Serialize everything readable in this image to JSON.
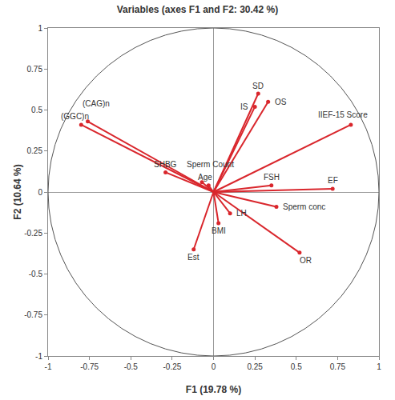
{
  "chart_data": {
    "type": "correlation_circle",
    "title": "Variables (axes F1 and F2: 30.42 %)",
    "x_label": "F1 (19.78 %)",
    "y_label": "F2 (10.64 %)",
    "labels": [
      "(CAG)n",
      "(GGC)n",
      "SHBG",
      "Sperm Count",
      "Age",
      "SD",
      "OS",
      "IS",
      "IIEF-15 Score",
      "FSH",
      "Sperm conc",
      "EF",
      "LH",
      "BMI",
      "Est",
      "OR"
    ],
    "x": [
      -0.76,
      -0.8,
      -0.29,
      -0.07,
      -0.03,
      0.27,
      0.33,
      0.25,
      0.83,
      0.35,
      0.38,
      0.72,
      0.1,
      0.03,
      -0.12,
      0.52
    ],
    "values": [
      0.43,
      0.41,
      0.12,
      0.06,
      0.04,
      0.6,
      0.55,
      0.52,
      0.41,
      0.04,
      -0.09,
      0.02,
      -0.13,
      -0.19,
      -0.35,
      -0.37
    ],
    "color": "#d9262c",
    "marker": "circle",
    "xlim": [
      -1,
      1
    ],
    "ylim": [
      -1,
      1
    ],
    "xticks": [
      -1,
      -0.75,
      -0.5,
      -0.25,
      0,
      0.25,
      0.5,
      0.75,
      1
    ],
    "yticks": [
      -1,
      -0.75,
      -0.5,
      -0.25,
      0,
      0.25,
      0.5,
      0.75,
      1
    ],
    "grid": false
  }
}
